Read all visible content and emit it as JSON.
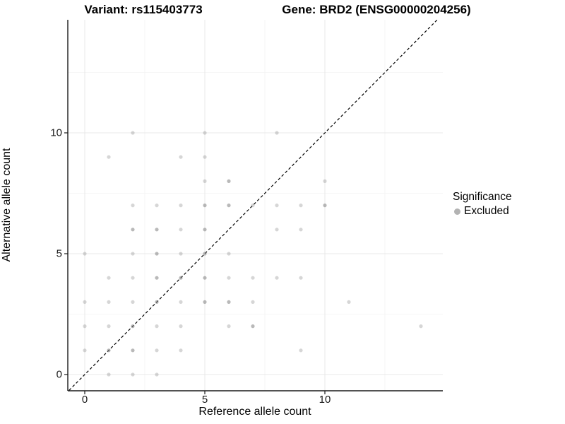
{
  "colors": {
    "point": "#808080",
    "legend_dot": "#b3b3b3",
    "grid_major": "#e8e8e8",
    "grid_minor": "#f3f3f3",
    "axis": "#1a1a1a",
    "identity_line": "#000000"
  },
  "legend": {
    "title": "Significance",
    "entries": [
      {
        "label": "Excluded",
        "color": "#b3b3b3"
      }
    ]
  },
  "chart_data": {
    "type": "scatter",
    "title_left": "Variant: rs115403773",
    "title_right": "Gene: BRD2 (ENSG00000204256)",
    "xlabel": "Reference allele count",
    "ylabel": "Alternative allele count",
    "xlim": [
      -0.76,
      14.9
    ],
    "ylim": [
      -0.8,
      14.75
    ],
    "x_ticks": [
      0,
      5,
      10
    ],
    "y_ticks": [
      0,
      5,
      10
    ],
    "x_minor_gridlines": [
      2.5,
      7.5,
      12.5
    ],
    "y_minor_gridlines": [
      2.5,
      7.5,
      12.5
    ],
    "grid": true,
    "legend_position": "right",
    "identity_line": {
      "style": "dashed",
      "from": [
        -0.8,
        -0.8
      ],
      "to": [
        15.0,
        15.0
      ]
    },
    "series": [
      {
        "name": "Excluded",
        "points": [
          [
            2,
            10,
            0
          ],
          [
            5,
            10,
            0
          ],
          [
            8,
            10,
            0
          ],
          [
            1,
            9,
            0
          ],
          [
            4,
            9,
            0
          ],
          [
            5,
            9,
            0
          ],
          [
            5,
            8,
            0
          ],
          [
            6,
            8,
            1
          ],
          [
            10,
            8,
            0
          ],
          [
            2,
            7,
            0
          ],
          [
            3,
            7,
            0
          ],
          [
            4,
            7,
            0
          ],
          [
            5,
            7,
            1
          ],
          [
            6,
            7,
            1
          ],
          [
            7,
            7,
            0
          ],
          [
            8,
            7,
            0
          ],
          [
            9,
            7,
            0
          ],
          [
            10,
            7,
            1
          ],
          [
            2,
            6,
            1
          ],
          [
            3,
            6,
            1
          ],
          [
            4,
            6,
            0
          ],
          [
            5,
            6,
            1
          ],
          [
            8,
            6,
            0
          ],
          [
            9,
            6,
            0
          ],
          [
            0,
            5,
            0
          ],
          [
            2,
            5,
            0
          ],
          [
            3,
            5,
            1
          ],
          [
            4,
            5,
            0
          ],
          [
            5,
            5,
            1
          ],
          [
            6,
            5,
            0
          ],
          [
            1,
            4,
            0
          ],
          [
            2,
            4,
            0
          ],
          [
            3,
            4,
            1
          ],
          [
            4,
            4,
            1
          ],
          [
            5,
            4,
            1
          ],
          [
            6,
            4,
            0
          ],
          [
            7,
            4,
            0
          ],
          [
            8,
            4,
            0
          ],
          [
            9,
            4,
            0
          ],
          [
            0,
            3,
            0
          ],
          [
            1,
            3,
            0
          ],
          [
            2,
            3,
            0
          ],
          [
            3,
            3,
            1
          ],
          [
            4,
            3,
            0
          ],
          [
            5,
            3,
            1
          ],
          [
            6,
            3,
            1
          ],
          [
            7,
            3,
            0
          ],
          [
            11,
            3,
            0
          ],
          [
            0,
            2,
            0
          ],
          [
            1,
            2,
            0
          ],
          [
            2,
            2,
            1
          ],
          [
            3,
            2,
            0
          ],
          [
            4,
            2,
            0
          ],
          [
            6,
            2,
            0
          ],
          [
            7,
            2,
            1
          ],
          [
            14,
            2,
            0
          ],
          [
            0,
            1,
            0
          ],
          [
            1,
            1,
            1
          ],
          [
            2,
            1,
            1
          ],
          [
            3,
            1,
            0
          ],
          [
            4,
            1,
            0
          ],
          [
            9,
            1,
            0
          ],
          [
            1,
            0,
            0
          ],
          [
            2,
            0,
            0
          ],
          [
            3,
            0,
            0
          ]
        ]
      }
    ]
  }
}
